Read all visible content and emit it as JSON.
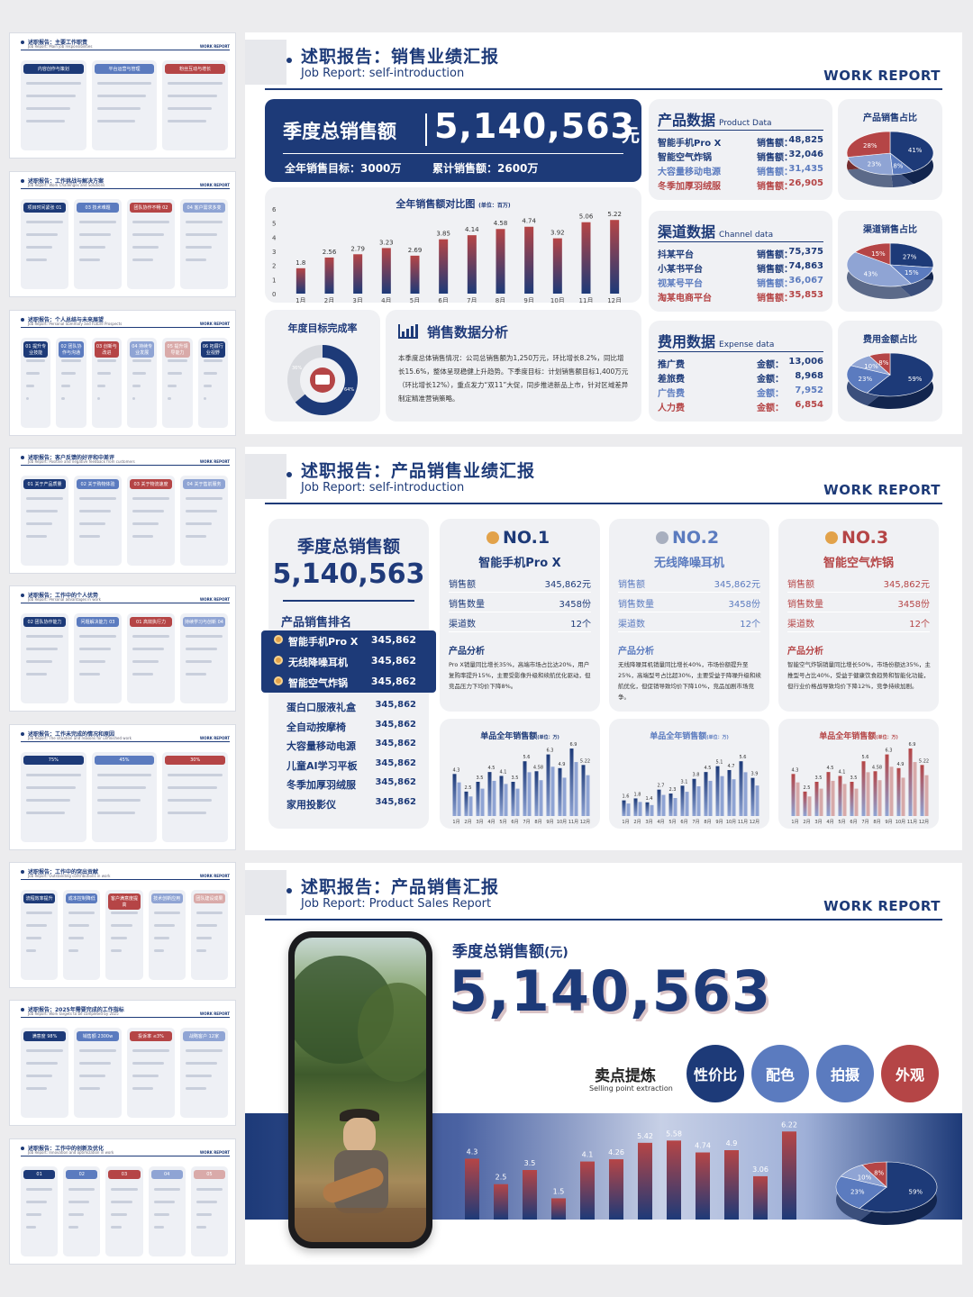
{
  "thumbs": [
    {
      "title": "述职报告：主要工作职责",
      "sub": "Job Report: Main job responsibilities",
      "wr": "WORK REPORT",
      "items": [
        "内容创作与策划",
        "平台运营与管理",
        "粉丝互动与增长"
      ]
    },
    {
      "title": "述职报告：工作挑战与解决方案",
      "sub": "Job Report: Work Challenges and Solutions",
      "wr": "WORK REPORT",
      "items": [
        "项目时间紧张 01",
        "03 技术难题",
        "团队协作不畅 02",
        "04 客户需求多变"
      ]
    },
    {
      "title": "述职报告：个人总结与未来展望",
      "sub": "Job Report: Personal Summary and Future Prospects",
      "wr": "WORK REPORT",
      "items": [
        "01 提升专业技能",
        "02 团队协作与沟通",
        "03 创新与改进",
        "04 持续专业发展",
        "05 提升领导能力",
        "06 拓展行业视野"
      ]
    },
    {
      "title": "述职报告：客户反馈的好评和中差评",
      "sub": "Job Report: Positive and negative feedback from customers",
      "wr": "WORK REPORT",
      "items": [
        "01 关于产品质量",
        "02 关于购物体验",
        "03 关于物流速度",
        "04 关于售前服务"
      ]
    },
    {
      "title": "述职报告：工作中的个人优势",
      "sub": "Job Report: Personal advantages in work",
      "wr": "WORK REPORT",
      "items": [
        "02 团队协作能力",
        "问题解决能力 03",
        "01 高效执行力",
        "持续学习与创新 04"
      ]
    },
    {
      "title": "述职报告：工作未完成的情况和原因",
      "sub": "Job Report: The situation and reasons for unfinished work",
      "wr": "WORK REPORT",
      "items": [
        "75%",
        "45%",
        "30%"
      ]
    },
    {
      "title": "述职报告：工作中的突出贡献",
      "sub": "Job Report: Outstanding contributions in work",
      "wr": "WORK REPORT",
      "items": [
        "流程效率提升",
        "成本控制降低",
        "客户满意度提高",
        "技术创新应用",
        "团队建设成果"
      ]
    },
    {
      "title": "述职报告：2025年需要完成的工作指标",
      "sub": "Job Report: Work targets to be completed by 2025",
      "wr": "WORK REPORT",
      "items": [
        "满意度 98%",
        "销售额 2300w",
        "投诉率 ≤3%",
        "战略客户 12家"
      ]
    },
    {
      "title": "述职报告：工作中的创新及优化",
      "sub": "Job Report: Innovation and optimization in work",
      "wr": "WORK REPORT",
      "items": [
        "01",
        "02",
        "03",
        "04",
        "05"
      ]
    }
  ],
  "s1": {
    "title": "述职报告：销售业绩汇报",
    "sub": "Job Report: self-introduction",
    "wr": "WORK REPORT",
    "hero": {
      "label": "季度总销售额",
      "value": "5,140,563",
      "unit": "元",
      "target": "全年销售目标：3000万",
      "acc": "累计销售额：2600万"
    },
    "monthly": {
      "title": "全年销售额对比图",
      "unit": "(单位：百万)"
    },
    "completion": {
      "title": "年度目标完成率",
      "pct_done": "64%",
      "pct_rest": "36%"
    },
    "analysis": {
      "title": "销售数据分析",
      "text": "本季度总体销售情况：公司总销售额为1,250万元，环比增长8.2%，同比增长15.6%，整体呈现稳健上升趋势。下季度目标：计划销售额目标1,400万元（环比增长12%），重点发力“双11”大促，同步推进新品上市，针对区域差异制定精准营销策略。"
    },
    "product": {
      "title": "产品数据",
      "en": "Product Data",
      "pie_title": "产品销售占比",
      "key": "销售额：",
      "rows": [
        {
          "name": "智能手机Pro X",
          "val": "48,825"
        },
        {
          "name": "智能空气炸锅",
          "val": "32,046"
        },
        {
          "name": "大容量移动电源",
          "val": "31,435"
        },
        {
          "name": "冬季加厚羽绒服",
          "val": "26,905"
        }
      ],
      "pie": [
        "41%",
        "28%",
        "23%",
        "8%"
      ]
    },
    "channel": {
      "title": "渠道数据",
      "en": "Channel data",
      "pie_title": "渠道销售占比",
      "key": "销售额：",
      "rows": [
        {
          "name": "抖某平台",
          "val": "75,375"
        },
        {
          "name": "小某书平台",
          "val": "74,863"
        },
        {
          "name": "视某号平台",
          "val": "36,067"
        },
        {
          "name": "淘某电商平台",
          "val": "35,853"
        }
      ],
      "pie": [
        "27%",
        "15%",
        "43%",
        "15%"
      ]
    },
    "expense": {
      "title": "费用数据",
      "en": "Expense data",
      "pie_title": "费用金额占比",
      "key": "金额：",
      "rows": [
        {
          "name": "推广费",
          "val": "13,006"
        },
        {
          "name": "差旅费",
          "val": "8,968"
        },
        {
          "name": "广告费",
          "val": "7,952"
        },
        {
          "name": "人力费",
          "val": "6,854"
        }
      ],
      "pie": [
        "59%",
        "23%",
        "10%",
        "8%"
      ]
    }
  },
  "s2": {
    "title": "述职报告：产品销售业绩汇报",
    "sub": "Job Report: self-introduction",
    "wr": "WORK REPORT",
    "total_label": "季度总销售额",
    "total": "5,140,563",
    "rank_title": "产品销售排名",
    "rank": [
      {
        "name": "智能手机Pro X",
        "val": "345,862"
      },
      {
        "name": "无线降噪耳机",
        "val": "345,862"
      },
      {
        "name": "智能空气炸锅",
        "val": "345,862"
      },
      {
        "name": "蛋白口服液礼盒",
        "val": "345,862"
      },
      {
        "name": "全自动按摩椅",
        "val": "345,862"
      },
      {
        "name": "大容量移动电源",
        "val": "345,862"
      },
      {
        "name": "儿童AI学习平板",
        "val": "345,862"
      },
      {
        "name": "冬季加厚羽绒服",
        "val": "345,862"
      },
      {
        "name": "家用投影仪",
        "val": "345,862"
      }
    ],
    "products": [
      {
        "rank": "NO.1",
        "name": "智能手机Pro X",
        "sales_label": "销售额",
        "sales": "345,862元",
        "qty_label": "销售数量",
        "qty": "3458份",
        "ch_label": "渠道数",
        "ch": "12个",
        "ana_title": "产品分析",
        "ana": "Pro X销量同比增长35%，高端市场占比达20%，用户复购率提升15%，主要受影像升级和续航优化驱动，但竞品压力下均价下降8%。",
        "chart_title": "单品全年销售额",
        "chart_unit": "(单位：万)"
      },
      {
        "rank": "NO.2",
        "name": "无线降噪耳机",
        "sales_label": "销售额",
        "sales": "345,862元",
        "qty_label": "销售数量",
        "qty": "3458份",
        "ch_label": "渠道数",
        "ch": "12个",
        "ana_title": "产品分析",
        "ana": "无线降噪耳机销量同比增长40%，市场份额提升至25%，高端型号占比超30%，主要受益于降噪升级和续航优化，但促销导致均价下降10%，竞品加剧市场竞争。",
        "chart_title": "单品全年销售额",
        "chart_unit": "(单位：万)"
      },
      {
        "rank": "NO.3",
        "name": "智能空气炸锅",
        "sales_label": "销售额",
        "sales": "345,862元",
        "qty_label": "销售数量",
        "qty": "3458份",
        "ch_label": "渠道数",
        "ch": "12个",
        "ana_title": "产品分析",
        "ana": "智能空气炸锅销量同比增长50%，市场份额达35%，主推型号占比40%，受益于健康饮食趋势和智能化功能，但行业价格战导致均价下降12%，竞争持续加剧。",
        "chart_title": "单品全年销售额",
        "chart_unit": "(单位：万)"
      }
    ]
  },
  "s3": {
    "title": "述职报告：产品销售汇报",
    "sub": "Job Report: Product Sales Report",
    "wr": "WORK REPORT",
    "label": "季度总销售额",
    "unit": "(元)",
    "value": "5,140,563",
    "sp_title": "卖点提炼",
    "sp_en": "Selling point extraction",
    "points": [
      "性价比",
      "配色",
      "拍摄",
      "外观"
    ],
    "pie": [
      "59%",
      "23%",
      "10%",
      "8%"
    ]
  },
  "chart_data": [
    {
      "type": "bar",
      "title": "全年销售额对比图",
      "unit": "(单位：百万)",
      "categories": [
        "1月",
        "2月",
        "3月",
        "4月",
        "5月",
        "6月",
        "7月",
        "8月",
        "9月",
        "10月",
        "11月",
        "12月"
      ],
      "values": [
        1.8,
        2.56,
        2.79,
        3.23,
        2.69,
        3.85,
        4.14,
        4.58,
        4.74,
        3.92,
        5.06,
        5.22
      ],
      "ylim": [
        0,
        6
      ]
    },
    {
      "type": "pie",
      "title": "产品销售占比",
      "labels": [
        "智能手机Pro X",
        "智能空气炸锅",
        "大容量移动电源",
        "冬季加厚羽绒服"
      ],
      "values": [
        41,
        28,
        23,
        8
      ]
    },
    {
      "type": "pie",
      "title": "渠道销售占比",
      "labels": [
        "抖某平台",
        "小某书平台",
        "视某号平台",
        "淘某电商平台"
      ],
      "values": [
        27,
        15,
        43,
        15
      ]
    },
    {
      "type": "pie",
      "title": "费用金额占比",
      "labels": [
        "推广费",
        "差旅费",
        "广告费",
        "人力费"
      ],
      "values": [
        59,
        23,
        10,
        8
      ]
    },
    {
      "type": "bar",
      "title": "单品全年销售额",
      "unit": "(单位：万)",
      "categories": [
        "1月",
        "2月",
        "3月",
        "4月",
        "5月",
        "6月",
        "7月",
        "8月",
        "9月",
        "10月",
        "11月",
        "12月"
      ],
      "series": [
        {
          "values": [
            4.3,
            2.5,
            3.5,
            4.5,
            4.1,
            3.5,
            5.6,
            4.58,
            6.3,
            4.9,
            6.9,
            5.22
          ]
        }
      ]
    },
    {
      "type": "bar",
      "title": "单品全年销售额",
      "unit": "(单位：万)",
      "categories": [
        "1月",
        "2月",
        "3月",
        "4月",
        "5月",
        "6月",
        "7月",
        "8月",
        "9月",
        "10月",
        "11月",
        "12月"
      ],
      "series": [
        {
          "values": [
            1.6,
            1.8,
            1.4,
            2.7,
            2.3,
            3.1,
            3.8,
            4.5,
            5.1,
            4.7,
            5.6,
            3.9
          ]
        }
      ]
    },
    {
      "type": "bar",
      "title": "单品全年销售额",
      "unit": "(单位：万)",
      "categories": [
        "1月",
        "2月",
        "3月",
        "4月",
        "5月",
        "6月",
        "7月",
        "8月",
        "9月",
        "10月",
        "11月",
        "12月"
      ],
      "series": [
        {
          "values": [
            4.3,
            2.5,
            3.5,
            4.5,
            4.1,
            3.5,
            5.6,
            4.58,
            6.3,
            4.9,
            6.9,
            5.22
          ]
        }
      ]
    },
    {
      "type": "bar",
      "title": "",
      "categories": [
        "",
        "",
        "",
        "",
        "",
        "",
        "",
        "",
        "",
        "",
        "",
        ""
      ],
      "values": [
        4.3,
        2.5,
        3.5,
        1.5,
        4.1,
        4.26,
        5.42,
        5.58,
        4.74,
        4.9,
        3.06,
        6.22
      ]
    }
  ]
}
